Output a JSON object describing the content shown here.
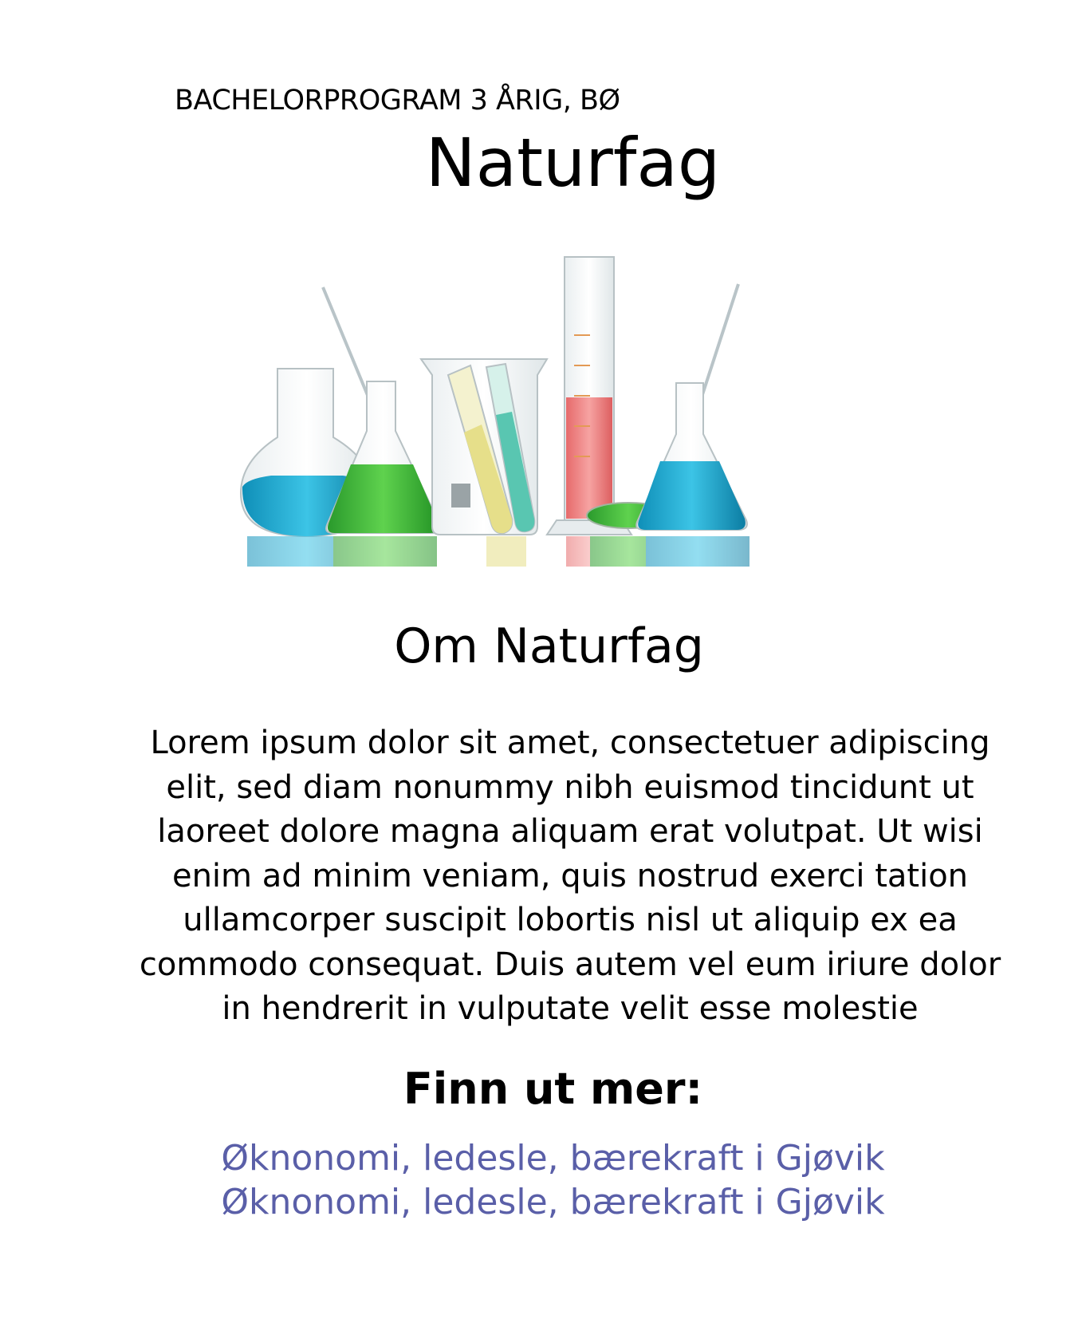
{
  "header": {
    "eyebrow": "BACHELORPROGRAM 3 ÅRIG, BØ",
    "title": "Naturfag"
  },
  "hero": {
    "icon": "laboratory-glassware-image",
    "beaker_scales": {
      "cylinder": [
        "50",
        "40",
        "30",
        "20",
        "10"
      ],
      "beaker": [
        "250",
        "200",
        "150",
        "100",
        "50"
      ],
      "flask_left": [
        "100",
        "75",
        "50"
      ],
      "flask_right": [
        "100",
        "75",
        "50"
      ]
    },
    "colors": {
      "blue": "#1aa6cf",
      "green": "#38b13a",
      "yellow": "#e6df8a",
      "teal": "#59c6b1",
      "red": "#ee7f80"
    }
  },
  "about": {
    "heading": "Om Naturfag",
    "body": "Lorem ipsum dolor sit amet, consectetuer adipiscing elit, sed diam nonummy nibh euismod tincidunt ut laoreet dolore magna aliquam erat volutpat. Ut wisi enim ad minim veniam, quis nostrud exerci tation ullamcorper suscipit lobortis nisl ut aliquip ex ea commodo consequat. Duis autem vel eum iriure dolor in hendrerit in vulputate velit esse molestie"
  },
  "more": {
    "heading": "Finn ut mer:",
    "links": [
      "Øknonomi, ledesle, bærekraft i Gjøvik",
      "Øknonomi, ledesle, bærekraft i Gjøvik"
    ],
    "link_color": "#5a5fa8"
  }
}
